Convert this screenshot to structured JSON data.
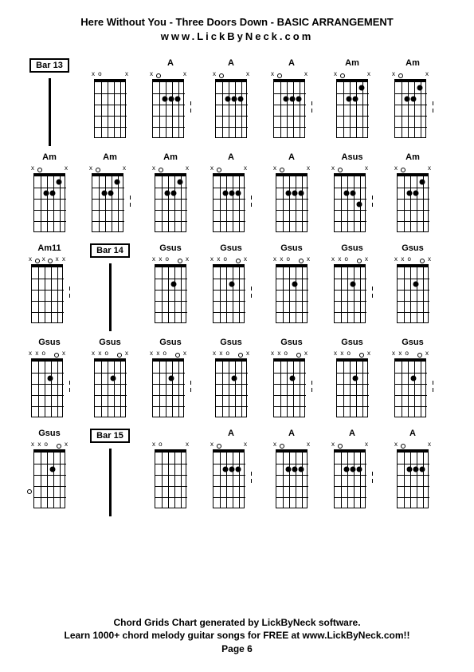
{
  "header": {
    "title": "Here Without You - Three Doors Down - BASIC ARRANGEMENT",
    "subtitle": "www.LickByNeck.com"
  },
  "footer": {
    "line1": "Chord Grids Chart generated by LickByNeck software.",
    "line2": "Learn 1000+ chord melody guitar songs for FREE at www.LickByNeck.com!!",
    "page": "Page 6"
  },
  "cells": [
    {
      "type": "bar",
      "label": "Bar 13"
    },
    {
      "type": "chord",
      "label": "",
      "markers": [
        "x",
        "o",
        "",
        "",
        "",
        "x"
      ],
      "dots": [],
      "open": []
    },
    {
      "type": "chord",
      "label": "A",
      "markers": [
        "x",
        "",
        "",
        "",
        "",
        "x"
      ],
      "dots": [
        {
          "s": 2,
          "f": 2
        },
        {
          "s": 3,
          "f": 2
        },
        {
          "s": 4,
          "f": 2
        }
      ],
      "open": [
        {
          "s": 1
        }
      ],
      "tick": true
    },
    {
      "type": "chord",
      "label": "A",
      "markers": [
        "x",
        "",
        "",
        "",
        "",
        "x"
      ],
      "dots": [
        {
          "s": 2,
          "f": 2
        },
        {
          "s": 3,
          "f": 2
        },
        {
          "s": 4,
          "f": 2
        }
      ],
      "open": [
        {
          "s": 1
        }
      ]
    },
    {
      "type": "chord",
      "label": "A",
      "markers": [
        "x",
        "",
        "",
        "",
        "",
        "x"
      ],
      "dots": [
        {
          "s": 2,
          "f": 2
        },
        {
          "s": 3,
          "f": 2
        },
        {
          "s": 4,
          "f": 2
        }
      ],
      "open": [
        {
          "s": 1
        }
      ],
      "tick": true
    },
    {
      "type": "chord",
      "label": "Am",
      "markers": [
        "x",
        "",
        "",
        "",
        "",
        "x"
      ],
      "dots": [
        {
          "s": 2,
          "f": 2
        },
        {
          "s": 3,
          "f": 2
        },
        {
          "s": 4,
          "f": 1
        }
      ],
      "open": [
        {
          "s": 1
        }
      ]
    },
    {
      "type": "chord",
      "label": "Am",
      "markers": [
        "x",
        "",
        "",
        "",
        "",
        "x"
      ],
      "dots": [
        {
          "s": 2,
          "f": 2
        },
        {
          "s": 3,
          "f": 2
        },
        {
          "s": 4,
          "f": 1
        }
      ],
      "open": [
        {
          "s": 1
        }
      ],
      "tick": true
    },
    {
      "type": "chord",
      "label": "Am",
      "markers": [
        "x",
        "",
        "",
        "",
        "",
        "x"
      ],
      "dots": [
        {
          "s": 2,
          "f": 2
        },
        {
          "s": 3,
          "f": 2
        },
        {
          "s": 4,
          "f": 1
        }
      ],
      "open": [
        {
          "s": 1
        }
      ]
    },
    {
      "type": "chord",
      "label": "Am",
      "markers": [
        "x",
        "",
        "",
        "",
        "",
        "x"
      ],
      "dots": [
        {
          "s": 2,
          "f": 2
        },
        {
          "s": 3,
          "f": 2
        },
        {
          "s": 4,
          "f": 1
        }
      ],
      "open": [
        {
          "s": 1
        }
      ],
      "tick": true
    },
    {
      "type": "chord",
      "label": "Am",
      "markers": [
        "x",
        "",
        "",
        "",
        "",
        "x"
      ],
      "dots": [
        {
          "s": 2,
          "f": 2
        },
        {
          "s": 3,
          "f": 2
        },
        {
          "s": 4,
          "f": 1
        }
      ],
      "open": [
        {
          "s": 1
        }
      ]
    },
    {
      "type": "chord",
      "label": "A",
      "markers": [
        "x",
        "",
        "",
        "",
        "",
        "x"
      ],
      "dots": [
        {
          "s": 2,
          "f": 2
        },
        {
          "s": 3,
          "f": 2
        },
        {
          "s": 4,
          "f": 2
        }
      ],
      "open": [
        {
          "s": 1
        }
      ],
      "tick": true
    },
    {
      "type": "chord",
      "label": "A",
      "markers": [
        "x",
        "",
        "",
        "",
        "",
        "x"
      ],
      "dots": [
        {
          "s": 2,
          "f": 2
        },
        {
          "s": 3,
          "f": 2
        },
        {
          "s": 4,
          "f": 2
        }
      ],
      "open": [
        {
          "s": 1
        }
      ]
    },
    {
      "type": "chord",
      "label": "Asus",
      "markers": [
        "x",
        "",
        "",
        "",
        "",
        "x"
      ],
      "dots": [
        {
          "s": 2,
          "f": 2
        },
        {
          "s": 3,
          "f": 2
        },
        {
          "s": 4,
          "f": 3
        }
      ],
      "open": [
        {
          "s": 1
        }
      ],
      "tick": true
    },
    {
      "type": "chord",
      "label": "Am",
      "markers": [
        "x",
        "",
        "",
        "",
        "",
        "x"
      ],
      "dots": [
        {
          "s": 2,
          "f": 2
        },
        {
          "s": 3,
          "f": 2
        },
        {
          "s": 4,
          "f": 1
        }
      ],
      "open": [
        {
          "s": 1
        }
      ]
    },
    {
      "type": "chord",
      "label": "Am11",
      "markers": [
        "x",
        "",
        "x",
        "",
        "x",
        "x"
      ],
      "dots": [],
      "open": [
        {
          "s": 1
        },
        {
          "s": 3
        }
      ],
      "tick": true
    },
    {
      "type": "bar",
      "label": "Bar 14"
    },
    {
      "type": "chord",
      "label": "Gsus",
      "markers": [
        "x",
        "x",
        "o",
        "",
        "",
        "x"
      ],
      "dots": [
        {
          "s": 3,
          "f": 2
        }
      ],
      "open": [
        {
          "s": 4
        }
      ]
    },
    {
      "type": "chord",
      "label": "Gsus",
      "markers": [
        "x",
        "x",
        "o",
        "",
        "",
        "x"
      ],
      "dots": [
        {
          "s": 3,
          "f": 2
        }
      ],
      "open": [
        {
          "s": 4
        }
      ],
      "tick": true
    },
    {
      "type": "chord",
      "label": "Gsus",
      "markers": [
        "x",
        "x",
        "o",
        "",
        "",
        "x"
      ],
      "dots": [
        {
          "s": 3,
          "f": 2
        }
      ],
      "open": [
        {
          "s": 4
        }
      ]
    },
    {
      "type": "chord",
      "label": "Gsus",
      "markers": [
        "x",
        "x",
        "o",
        "",
        "",
        "x"
      ],
      "dots": [
        {
          "s": 3,
          "f": 2
        }
      ],
      "open": [
        {
          "s": 4
        }
      ],
      "tick": true
    },
    {
      "type": "chord",
      "label": "Gsus",
      "markers": [
        "x",
        "x",
        "o",
        "",
        "",
        "x"
      ],
      "dots": [
        {
          "s": 3,
          "f": 2
        }
      ],
      "open": [
        {
          "s": 4
        }
      ]
    },
    {
      "type": "chord",
      "label": "Gsus",
      "markers": [
        "x",
        "x",
        "o",
        "",
        "",
        "x"
      ],
      "dots": [
        {
          "s": 3,
          "f": 2
        }
      ],
      "open": [
        {
          "s": 4
        }
      ],
      "tick": true
    },
    {
      "type": "chord",
      "label": "Gsus",
      "markers": [
        "x",
        "x",
        "o",
        "",
        "",
        "x"
      ],
      "dots": [
        {
          "s": 3,
          "f": 2
        }
      ],
      "open": [
        {
          "s": 4
        }
      ]
    },
    {
      "type": "chord",
      "label": "Gsus",
      "markers": [
        "x",
        "x",
        "o",
        "",
        "",
        "x"
      ],
      "dots": [
        {
          "s": 3,
          "f": 2
        }
      ],
      "open": [
        {
          "s": 4
        }
      ],
      "tick": true
    },
    {
      "type": "chord",
      "label": "Gsus",
      "markers": [
        "x",
        "x",
        "o",
        "",
        "",
        "x"
      ],
      "dots": [
        {
          "s": 3,
          "f": 2
        }
      ],
      "open": [
        {
          "s": 4
        }
      ]
    },
    {
      "type": "chord",
      "label": "Gsus",
      "markers": [
        "x",
        "x",
        "o",
        "",
        "",
        "x"
      ],
      "dots": [
        {
          "s": 3,
          "f": 2
        }
      ],
      "open": [
        {
          "s": 4
        }
      ],
      "tick": true
    },
    {
      "type": "chord",
      "label": "Gsus",
      "markers": [
        "x",
        "x",
        "o",
        "",
        "",
        "x"
      ],
      "dots": [
        {
          "s": 3,
          "f": 2
        }
      ],
      "open": [
        {
          "s": 4
        }
      ]
    },
    {
      "type": "chord",
      "label": "Gsus",
      "markers": [
        "x",
        "x",
        "o",
        "",
        "",
        "x"
      ],
      "dots": [
        {
          "s": 3,
          "f": 2
        }
      ],
      "open": [
        {
          "s": 4
        }
      ],
      "tick": true
    },
    {
      "type": "chord",
      "label": "Gsus",
      "markers": [
        "x",
        "x",
        "o",
        "",
        "",
        "x"
      ],
      "dots": [
        {
          "s": 3,
          "f": 2
        }
      ],
      "open": [
        {
          "s": 4
        }
      ],
      "sideopen": [
        {
          "f": 4
        }
      ]
    },
    {
      "type": "bar",
      "label": "Bar 15"
    },
    {
      "type": "chord",
      "label": "",
      "markers": [
        "x",
        "o",
        "",
        "",
        "",
        "x"
      ],
      "dots": [],
      "open": []
    },
    {
      "type": "chord",
      "label": "A",
      "markers": [
        "x",
        "",
        "",
        "",
        "",
        "x"
      ],
      "dots": [
        {
          "s": 2,
          "f": 2
        },
        {
          "s": 3,
          "f": 2
        },
        {
          "s": 4,
          "f": 2
        }
      ],
      "open": [
        {
          "s": 1
        }
      ],
      "tick": true
    },
    {
      "type": "chord",
      "label": "A",
      "markers": [
        "x",
        "",
        "",
        "",
        "",
        "x"
      ],
      "dots": [
        {
          "s": 2,
          "f": 2
        },
        {
          "s": 3,
          "f": 2
        },
        {
          "s": 4,
          "f": 2
        }
      ],
      "open": [
        {
          "s": 1
        }
      ]
    },
    {
      "type": "chord",
      "label": "A",
      "markers": [
        "x",
        "",
        "",
        "",
        "",
        "x"
      ],
      "dots": [
        {
          "s": 2,
          "f": 2
        },
        {
          "s": 3,
          "f": 2
        },
        {
          "s": 4,
          "f": 2
        }
      ],
      "open": [
        {
          "s": 1
        }
      ],
      "tick": true
    },
    {
      "type": "chord",
      "label": "A",
      "markers": [
        "x",
        "",
        "",
        "",
        "",
        "x"
      ],
      "dots": [
        {
          "s": 2,
          "f": 2
        },
        {
          "s": 3,
          "f": 2
        },
        {
          "s": 4,
          "f": 2
        }
      ],
      "open": [
        {
          "s": 1
        }
      ]
    }
  ],
  "layout": {
    "strings": 6,
    "frets": 5,
    "string_spacing": 8,
    "fret_spacing": 14,
    "diagram_width": 50,
    "diagram_height": 90
  },
  "colors": {
    "background": "#ffffff",
    "line": "#000000",
    "text": "#000000"
  }
}
